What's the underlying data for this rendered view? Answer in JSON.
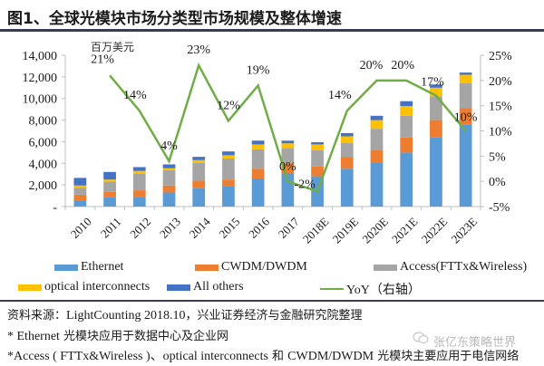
{
  "header": {
    "title": "图1、全球光模块市场分类型市场规模及整体增速"
  },
  "chart_data": {
    "type": "bar",
    "stacked": true,
    "title": "图1、全球光模块市场分类型市场规模及整体增速",
    "ylabel": "百万美元",
    "y2label": "YoY（右轴）",
    "ylim": [
      0,
      14000
    ],
    "y2lim": [
      -5,
      25
    ],
    "yticks": [
      "-",
      "2,000",
      "4,000",
      "6,000",
      "8,000",
      "10,000",
      "12,000",
      "14,000"
    ],
    "y2ticks": [
      "-5%",
      "0%",
      "5%",
      "10%",
      "15%",
      "20%",
      "25%"
    ],
    "grid": false,
    "legend_position": "bottom",
    "categories": [
      "2010",
      "2011",
      "2012",
      "2013",
      "2014",
      "2015",
      "2016",
      "2017",
      "2018E",
      "2019E",
      "2020E",
      "2021E",
      "2022E",
      "2023E"
    ],
    "series": [
      {
        "name": "Ethernet",
        "color": "#5b9bd5",
        "values": [
          550,
          850,
          900,
          1300,
          1700,
          1850,
          2600,
          3100,
          2800,
          3500,
          4100,
          5000,
          6400,
          7600
        ]
      },
      {
        "name": "CWDM/DWDM",
        "color": "#ed7d31",
        "values": [
          550,
          500,
          600,
          650,
          700,
          650,
          900,
          900,
          900,
          1100,
          1100,
          1400,
          1600,
          1500
        ]
      },
      {
        "name": "Access(FTTx&Wireless)",
        "color": "#a5a5a5",
        "values": [
          650,
          950,
          1550,
          1400,
          1650,
          1950,
          1800,
          1400,
          1500,
          1300,
          2000,
          2000,
          2200,
          2300
        ]
      },
      {
        "name": "optical interconnects",
        "color": "#ffc000",
        "values": [
          200,
          200,
          250,
          200,
          250,
          300,
          450,
          450,
          550,
          600,
          800,
          900,
          800,
          800
        ]
      },
      {
        "name": "All others",
        "color": "#4472c4",
        "values": [
          700,
          700,
          350,
          350,
          300,
          350,
          350,
          250,
          200,
          300,
          400,
          450,
          300,
          200
        ]
      }
    ],
    "line_series": {
      "name": "YoY（右轴）",
      "color": "#70ad47",
      "axis": "right",
      "values": [
        null,
        21,
        14,
        4,
        23,
        12,
        19,
        0,
        -2,
        14,
        20,
        20,
        17,
        10
      ],
      "labels": [
        "",
        "21%",
        "14%",
        "4%",
        "23%",
        "12%",
        "19%",
        "0%",
        "-2%",
        "14%",
        "20%",
        "20%",
        "17%",
        "10%"
      ]
    }
  },
  "legend": [
    {
      "label": "Ethernet",
      "color": "#5b9bd5",
      "kind": "bar"
    },
    {
      "label": "CWDM/DWDM",
      "color": "#ed7d31",
      "kind": "bar"
    },
    {
      "label": "Access(FTTx&Wireless)",
      "color": "#a5a5a5",
      "kind": "bar"
    },
    {
      "label": "optical interconnects",
      "color": "#ffc000",
      "kind": "bar"
    },
    {
      "label": "All others",
      "color": "#4472c4",
      "kind": "bar"
    },
    {
      "label": "YoY（右轴）",
      "color": "#70ad47",
      "kind": "line"
    }
  ],
  "notes": {
    "source_prefix": "资料来源：",
    "source_latin": "LightCounting 2018.10",
    "source_suffix": "，兴业证券经济与金融研究院整理",
    "note1_prefix": "* ",
    "note1_latin": "Ethernet",
    "note1_suffix": " 光模块应用于数据中心及企业网",
    "note2_prefix": "*",
    "note2_latin": "Access ( FTTx&Wireless )、optical interconnects",
    "note2_mid": " 和 ",
    "note2_latin2": "CWDM/DWDM",
    "note2_suffix": " 光模块主要应用于电信网络"
  },
  "watermark": {
    "icon": "wechat-icon",
    "text": "张亿东策略世界"
  }
}
